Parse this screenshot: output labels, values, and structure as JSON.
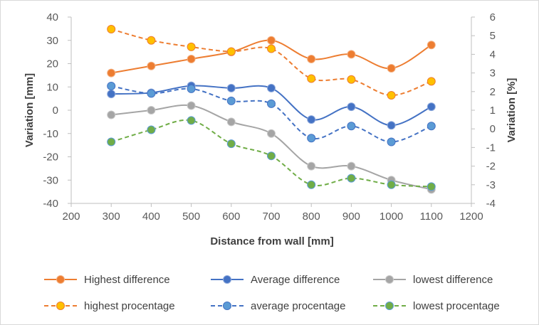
{
  "chart_data": {
    "type": "line",
    "xlabel": "Distance from wall [mm]",
    "ylabel": "Variation [mm]",
    "y2label": "Variation [%]",
    "xlim": [
      200,
      1200
    ],
    "ylim": [
      -40,
      40
    ],
    "y2lim": [
      -4,
      6
    ],
    "xticks": [
      "200",
      "300",
      "400",
      "500",
      "600",
      "700",
      "800",
      "900",
      "1000",
      "1100",
      "1200"
    ],
    "yticks": [
      "40",
      "30",
      "20",
      "10",
      "0",
      "-10",
      "-20",
      "-30",
      "-40"
    ],
    "y2ticks": [
      "6",
      "5",
      "4",
      "3",
      "2",
      "1",
      "0",
      "-1",
      "-2",
      "-3",
      "-4"
    ],
    "grid": false,
    "legend_position": "bottom",
    "x": [
      300,
      400,
      500,
      600,
      700,
      800,
      900,
      1000,
      1100
    ],
    "series": [
      {
        "name": "Highest difference",
        "axis": "left",
        "dash": false,
        "line_color": "#ED7D31",
        "marker_fill": "#ED7D31",
        "marker_edge": "#F4B183",
        "values": [
          16,
          19,
          22,
          25,
          30,
          22,
          24,
          18,
          28
        ]
      },
      {
        "name": "Average difference",
        "axis": "left",
        "dash": false,
        "line_color": "#4472C4",
        "marker_fill": "#4472C4",
        "marker_edge": "#8FAADC",
        "values": [
          7,
          7.5,
          10.5,
          9.5,
          9.5,
          -4,
          1.5,
          -6.5,
          1.5
        ]
      },
      {
        "name": "lowest difference",
        "axis": "left",
        "dash": false,
        "line_color": "#A5A5A5",
        "marker_fill": "#A5A5A5",
        "marker_edge": "#C9C9C9",
        "values": [
          -2,
          0,
          2,
          -5,
          -10,
          -24,
          -24,
          -30,
          -34
        ]
      },
      {
        "name": "highest procentage",
        "axis": "right",
        "dash": true,
        "line_color": "#ED7D31",
        "marker_fill": "#FFC000",
        "marker_edge": "#ED7D31",
        "values": [
          5.35,
          4.75,
          4.4,
          4.15,
          4.3,
          2.7,
          2.65,
          1.8,
          2.55
        ]
      },
      {
        "name": "average procentage",
        "axis": "right",
        "dash": true,
        "line_color": "#4472C4",
        "marker_fill": "#5B9BD5",
        "marker_edge": "#4472C4",
        "values": [
          2.3,
          1.9,
          2.15,
          1.5,
          1.35,
          -0.5,
          0.15,
          -0.7,
          0.15
        ]
      },
      {
        "name": "lowest procentage",
        "axis": "right",
        "dash": true,
        "line_color": "#70AD47",
        "marker_fill": "#70AD47",
        "marker_edge": "#5B9BD5",
        "values": [
          -0.7,
          -0.05,
          0.45,
          -0.8,
          -1.45,
          -3.0,
          -2.65,
          -3.0,
          -3.1
        ]
      }
    ]
  }
}
